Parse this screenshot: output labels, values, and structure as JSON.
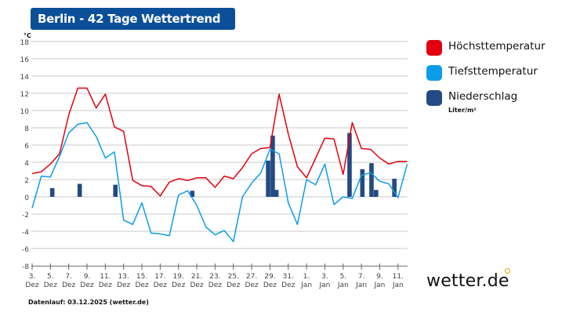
{
  "header": {
    "title": "Berlin - 42 Tage Wettertrend"
  },
  "footer": {
    "run_info": "Datenlauf: 03.12.2025 (wetter.de)"
  },
  "logo": {
    "text": "wetter.de"
  },
  "legend": {
    "items": [
      {
        "label": "Höchsttemperatur",
        "color": "#e3000f"
      },
      {
        "label": "Tiefsttemperatur",
        "color": "#0c9cea"
      },
      {
        "label": "Niederschlag",
        "color": "#234a82",
        "unit": "Liter/m²"
      }
    ]
  },
  "chart_data": {
    "type": "line",
    "ylabel": "°C",
    "ylim": [
      -8,
      18
    ],
    "yticks": [
      -8,
      -6,
      -4,
      -2,
      0,
      2,
      4,
      6,
      8,
      10,
      12,
      14,
      16,
      18
    ],
    "grid": true,
    "legend_placement": "right",
    "categories": [
      "3. Dez",
      "4. Dez",
      "5. Dez",
      "6. Dez",
      "7. Dez",
      "8. Dez",
      "9. Dez",
      "10. Dez",
      "11. Dez",
      "12. Dez",
      "13. Dez",
      "14. Dez",
      "15. Dez",
      "16. Dez",
      "17. Dez",
      "18. Dez",
      "19. Dez",
      "20. Dez",
      "21. Dez",
      "22. Dez",
      "23. Dez",
      "24. Dez",
      "25. Dez",
      "26. Dez",
      "27. Dez",
      "28. Dez",
      "29. Dez",
      "30. Dez",
      "31. Dez",
      "1. Jan",
      "2. Jan",
      "3. Jan",
      "4. Jan",
      "5. Jan",
      "6. Jan",
      "7. Jan",
      "8. Jan",
      "9. Jan",
      "10. Jan",
      "11. Jan",
      "12. Jan",
      "13. Jan"
    ],
    "xtick_labels": [
      [
        "3.",
        "Dez"
      ],
      [
        "5.",
        "Dez"
      ],
      [
        "7.",
        "Dez"
      ],
      [
        "9.",
        "Dez"
      ],
      [
        "11.",
        "Dez"
      ],
      [
        "13.",
        "Dez"
      ],
      [
        "15.",
        "Dez"
      ],
      [
        "17.",
        "Dez"
      ],
      [
        "19.",
        "Dez"
      ],
      [
        "21.",
        "Dez"
      ],
      [
        "23.",
        "Dez"
      ],
      [
        "25.",
        "Dez"
      ],
      [
        "27.",
        "Dez"
      ],
      [
        "29.",
        "Dez"
      ],
      [
        "31.",
        "Dez"
      ],
      [
        "1.",
        "Jan"
      ],
      [
        "3.",
        "Jan"
      ],
      [
        "5.",
        "Jan"
      ],
      [
        "7.",
        "Jan"
      ],
      [
        "9.",
        "Jan"
      ],
      [
        "11.",
        "Jan"
      ]
    ],
    "series": [
      {
        "name": "Höchsttemperatur",
        "type": "line",
        "color": "#e3000f",
        "values": [
          2.7,
          2.9,
          3.8,
          5.0,
          9.5,
          12.6,
          12.6,
          10.3,
          11.9,
          8.1,
          7.6,
          1.9,
          1.3,
          1.2,
          0.1,
          1.7,
          2.1,
          1.9,
          2.2,
          2.2,
          1.1,
          2.4,
          2.1,
          3.4,
          5.0,
          5.6,
          5.7,
          11.9,
          7.3,
          3.5,
          2.2,
          4.5,
          6.8,
          6.7,
          2.6,
          8.6,
          5.6,
          5.5,
          4.5,
          3.8,
          4.1,
          4.1
        ]
      },
      {
        "name": "Tiefsttemperatur",
        "type": "line",
        "color": "#0c9cea",
        "values": [
          -1.3,
          2.4,
          2.3,
          4.7,
          7.4,
          8.4,
          8.6,
          7.0,
          4.5,
          5.2,
          -2.7,
          -3.2,
          -0.7,
          -4.2,
          -4.3,
          -4.5,
          0.2,
          0.7,
          -1.0,
          -3.5,
          -4.4,
          -3.9,
          -5.2,
          0.0,
          1.6,
          2.8,
          5.5,
          5.0,
          -0.7,
          -3.2,
          2.0,
          1.4,
          3.8,
          -0.9,
          0.0,
          -0.2,
          2.5,
          2.8,
          1.8,
          1.5,
          -0.1,
          3.8
        ]
      },
      {
        "name": "Niederschlag",
        "type": "bar",
        "color": "#234a82",
        "points": [
          {
            "date": "5. Dez",
            "value": 1.0
          },
          {
            "date": "8. Dez",
            "value": 1.5
          },
          {
            "date": "12. Dez",
            "value": 1.4
          },
          {
            "date": "20. Dez",
            "value": 0.7
          },
          {
            "date": "28. Dez",
            "value": 4.2
          },
          {
            "date": "29. Dez",
            "value": 7.1
          },
          {
            "date": "29. Dez",
            "value": 0.8
          },
          {
            "date": "6. Jan",
            "value": 7.4
          },
          {
            "date": "7. Jan",
            "value": 3.2
          },
          {
            "date": "8. Jan",
            "value": 3.9
          },
          {
            "date": "9. Jan",
            "value": 0.8
          },
          {
            "date": "11. Jan",
            "value": 2.1
          }
        ]
      }
    ]
  }
}
